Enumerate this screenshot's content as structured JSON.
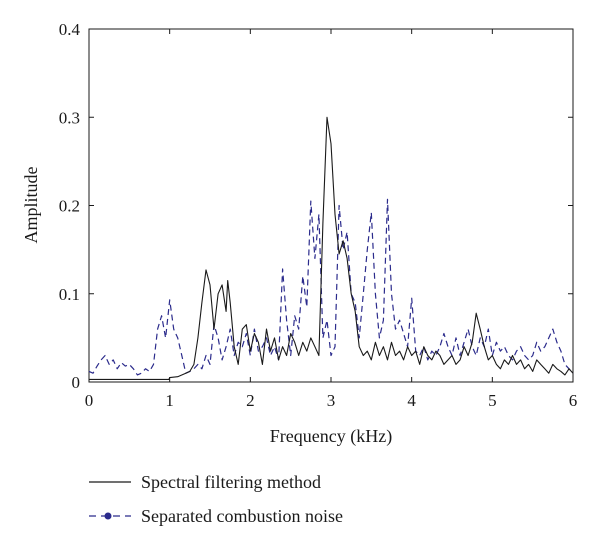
{
  "chart_data": {
    "type": "line",
    "xlabel": "Frequency (kHz)",
    "ylabel": "Amplitude",
    "xlim": [
      0,
      6
    ],
    "ylim": [
      0,
      0.4
    ],
    "x_ticks": [
      "0",
      "1",
      "2",
      "3",
      "4",
      "5",
      "6"
    ],
    "y_ticks": [
      "0",
      "0.1",
      "0.2",
      "0.3",
      "0.4"
    ],
    "grid": false,
    "legend_position": "below plot",
    "series": [
      {
        "name": "Spectral filtering method",
        "color": "#1a1a1a",
        "style": "solid",
        "x": [
          0,
          0.5,
          0.99,
          1.0,
          1.1,
          1.2,
          1.25,
          1.3,
          1.35,
          1.4,
          1.45,
          1.5,
          1.55,
          1.6,
          1.65,
          1.7,
          1.72,
          1.75,
          1.8,
          1.85,
          1.9,
          1.95,
          2.0,
          2.05,
          2.1,
          2.15,
          2.2,
          2.25,
          2.3,
          2.35,
          2.4,
          2.45,
          2.5,
          2.55,
          2.6,
          2.65,
          2.7,
          2.75,
          2.8,
          2.85,
          2.9,
          2.95,
          3.0,
          3.05,
          3.1,
          3.15,
          3.2,
          3.25,
          3.3,
          3.35,
          3.4,
          3.45,
          3.5,
          3.55,
          3.6,
          3.65,
          3.7,
          3.75,
          3.8,
          3.85,
          3.9,
          3.95,
          4.0,
          4.05,
          4.1,
          4.15,
          4.2,
          4.25,
          4.3,
          4.35,
          4.4,
          4.45,
          4.5,
          4.55,
          4.6,
          4.65,
          4.7,
          4.75,
          4.8,
          4.85,
          4.9,
          4.95,
          5.0,
          5.05,
          5.1,
          5.15,
          5.2,
          5.25,
          5.3,
          5.35,
          5.4,
          5.45,
          5.5,
          5.55,
          5.6,
          5.65,
          5.7,
          5.75,
          5.8,
          5.85,
          5.9,
          5.95,
          6.0
        ],
        "y": [
          0.003,
          0.003,
          0.003,
          0.005,
          0.006,
          0.01,
          0.012,
          0.02,
          0.05,
          0.09,
          0.127,
          0.11,
          0.06,
          0.1,
          0.11,
          0.08,
          0.115,
          0.09,
          0.04,
          0.02,
          0.06,
          0.065,
          0.035,
          0.055,
          0.045,
          0.02,
          0.06,
          0.035,
          0.05,
          0.025,
          0.04,
          0.03,
          0.055,
          0.045,
          0.03,
          0.045,
          0.035,
          0.05,
          0.04,
          0.03,
          0.18,
          0.3,
          0.27,
          0.19,
          0.145,
          0.16,
          0.14,
          0.1,
          0.08,
          0.04,
          0.03,
          0.035,
          0.025,
          0.045,
          0.03,
          0.04,
          0.025,
          0.045,
          0.03,
          0.035,
          0.025,
          0.04,
          0.03,
          0.035,
          0.02,
          0.04,
          0.03,
          0.025,
          0.035,
          0.03,
          0.02,
          0.025,
          0.03,
          0.02,
          0.025,
          0.04,
          0.03,
          0.045,
          0.078,
          0.06,
          0.04,
          0.025,
          0.03,
          0.02,
          0.015,
          0.025,
          0.02,
          0.03,
          0.02,
          0.025,
          0.015,
          0.02,
          0.012,
          0.025,
          0.02,
          0.015,
          0.01,
          0.02,
          0.015,
          0.012,
          0.008,
          0.015,
          0.01
        ]
      },
      {
        "name": "Separated combustion noise",
        "color": "#2b2b8c",
        "style": "dashed",
        "x": [
          0,
          0.05,
          0.1,
          0.15,
          0.2,
          0.25,
          0.3,
          0.35,
          0.4,
          0.45,
          0.5,
          0.55,
          0.6,
          0.65,
          0.7,
          0.75,
          0.8,
          0.85,
          0.9,
          0.95,
          1.0,
          1.05,
          1.1,
          1.15,
          1.2,
          1.25,
          1.3,
          1.35,
          1.4,
          1.45,
          1.5,
          1.55,
          1.6,
          1.65,
          1.7,
          1.75,
          1.8,
          1.85,
          1.9,
          1.95,
          2.0,
          2.05,
          2.1,
          2.15,
          2.2,
          2.25,
          2.3,
          2.35,
          2.4,
          2.45,
          2.5,
          2.55,
          2.6,
          2.65,
          2.7,
          2.75,
          2.8,
          2.85,
          2.9,
          2.95,
          3.0,
          3.05,
          3.1,
          3.15,
          3.2,
          3.25,
          3.3,
          3.35,
          3.4,
          3.45,
          3.5,
          3.55,
          3.6,
          3.65,
          3.7,
          3.75,
          3.8,
          3.85,
          3.9,
          3.95,
          4.0,
          4.05,
          4.1,
          4.15,
          4.2,
          4.25,
          4.3,
          4.35,
          4.4,
          4.45,
          4.5,
          4.55,
          4.6,
          4.65,
          4.7,
          4.75,
          4.8,
          4.85,
          4.9,
          4.95,
          5.0,
          5.05,
          5.1,
          5.15,
          5.2,
          5.25,
          5.3,
          5.35,
          5.4,
          5.45,
          5.5,
          5.55,
          5.6,
          5.65,
          5.7,
          5.75,
          5.8,
          5.85,
          5.9,
          5.95,
          6.0
        ],
        "y": [
          0.012,
          0.01,
          0.018,
          0.025,
          0.03,
          0.02,
          0.025,
          0.015,
          0.022,
          0.018,
          0.02,
          0.015,
          0.008,
          0.01,
          0.015,
          0.012,
          0.02,
          0.06,
          0.075,
          0.05,
          0.093,
          0.06,
          0.05,
          0.03,
          0.01,
          0.012,
          0.015,
          0.02,
          0.015,
          0.03,
          0.02,
          0.065,
          0.05,
          0.025,
          0.04,
          0.06,
          0.03,
          0.045,
          0.04,
          0.055,
          0.03,
          0.06,
          0.035,
          0.04,
          0.05,
          0.03,
          0.04,
          0.025,
          0.128,
          0.07,
          0.03,
          0.075,
          0.06,
          0.12,
          0.085,
          0.205,
          0.14,
          0.19,
          0.05,
          0.07,
          0.03,
          0.04,
          0.2,
          0.15,
          0.17,
          0.1,
          0.09,
          0.05,
          0.1,
          0.15,
          0.192,
          0.1,
          0.05,
          0.07,
          0.207,
          0.1,
          0.06,
          0.07,
          0.055,
          0.04,
          0.095,
          0.035,
          0.03,
          0.04,
          0.025,
          0.035,
          0.03,
          0.04,
          0.055,
          0.04,
          0.03,
          0.05,
          0.03,
          0.045,
          0.06,
          0.04,
          0.03,
          0.05,
          0.04,
          0.06,
          0.03,
          0.045,
          0.035,
          0.04,
          0.03,
          0.025,
          0.035,
          0.04,
          0.03,
          0.025,
          0.03,
          0.045,
          0.035,
          0.04,
          0.05,
          0.06,
          0.045,
          0.035,
          0.02,
          0.015,
          0.01
        ]
      }
    ]
  }
}
